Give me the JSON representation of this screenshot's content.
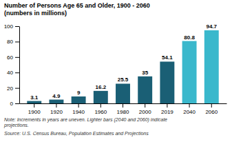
{
  "chart_data": {
    "type": "bar",
    "title": "Number of Persons Age 65 and Older, 1900 - 2060",
    "subtitle": "(numbers in millions)",
    "categories": [
      "1900",
      "1920",
      "1940",
      "1960",
      "1980",
      "2000",
      "2019",
      "2040",
      "2060"
    ],
    "values": [
      3.1,
      4.9,
      9,
      16.2,
      25.5,
      35,
      54.1,
      80.8,
      94.7
    ],
    "colors": [
      "#1a5f75",
      "#1a5f75",
      "#1a5f75",
      "#1a5f75",
      "#1a5f75",
      "#1a5f75",
      "#1a5f75",
      "#3ab8cc",
      "#3ab8cc"
    ],
    "ylim": [
      0,
      100
    ],
    "yticks": [
      0,
      20,
      40,
      60,
      80,
      100
    ],
    "grid": false,
    "data_labels": true,
    "annotations": [
      "Note: Increments in years are uneven. Lighter bars (2040 and 2060) indicate\nprojections.",
      "Source: U.S. Census Bureau, Population Estimates and Projections"
    ]
  }
}
